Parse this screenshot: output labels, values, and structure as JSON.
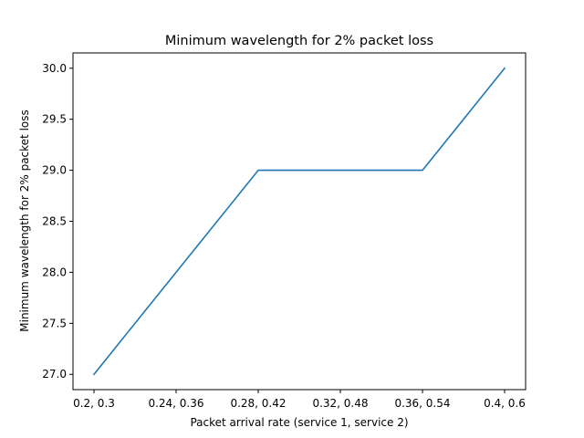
{
  "chart_data": {
    "type": "line",
    "title": "Minimum wavelength for 2% packet loss",
    "xlabel": "Packet arrival rate (service 1, service 2)",
    "ylabel": "Minimum wavelength for 2% packet loss",
    "categories": [
      "0.2, 0.3",
      "0.24, 0.36",
      "0.28, 0.42",
      "0.32, 0.48",
      "0.36, 0.54",
      "0.4, 0.6"
    ],
    "series": [
      {
        "values": [
          27,
          28,
          29,
          29,
          29,
          30
        ],
        "color": "#1f77b4"
      }
    ],
    "ylim": [
      26.85,
      30.15
    ],
    "yticks": [
      27.0,
      27.5,
      28.0,
      28.5,
      29.0,
      29.5,
      30.0
    ],
    "ytick_labels": [
      "27.0",
      "27.5",
      "28.0",
      "28.5",
      "29.0",
      "29.5",
      "30.0"
    ],
    "grid": false,
    "legend": "none"
  }
}
